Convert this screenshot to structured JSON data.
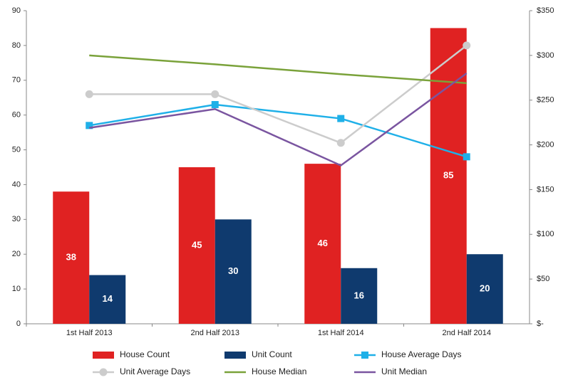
{
  "chart_data": {
    "type": "bar",
    "categories": [
      "1st Half 2013",
      "2nd Half 2013",
      "1st Half 2014",
      "2nd Half 2014"
    ],
    "series": [
      {
        "name": "House Count",
        "kind": "bar",
        "color": "#e02222",
        "values": [
          38,
          45,
          46,
          85
        ]
      },
      {
        "name": "Unit Count",
        "kind": "bar",
        "color": "#0f3a6e",
        "values": [
          14,
          30,
          16,
          20
        ]
      },
      {
        "name": "House Average Days",
        "kind": "line",
        "marker": "square",
        "color": "#1fb0e8",
        "values": [
          57,
          63,
          59,
          48
        ]
      },
      {
        "name": "Unit Average Days",
        "kind": "line",
        "marker": "circle",
        "color": "#cccccc",
        "values": [
          66,
          66,
          52,
          80
        ]
      },
      {
        "name": "House Median",
        "kind": "line",
        "axis": "y2",
        "color": "#7aa23a",
        "values": [
          300,
          290,
          279,
          269
        ]
      },
      {
        "name": "Unit Median",
        "kind": "line",
        "axis": "y2",
        "color": "#7a55a0",
        "values": [
          219,
          240,
          177,
          280
        ]
      }
    ],
    "ylim": [
      0,
      90
    ],
    "yticks": [
      0,
      10,
      20,
      30,
      40,
      50,
      60,
      70,
      80,
      90
    ],
    "y2lim": [
      0,
      350
    ],
    "y2ticks": [
      {
        "value": 0,
        "label": "$-"
      },
      {
        "value": 50,
        "label": "$50"
      },
      {
        "value": 100,
        "label": "$100"
      },
      {
        "value": 150,
        "label": "$150"
      },
      {
        "value": 200,
        "label": "$200"
      },
      {
        "value": 250,
        "label": "$250"
      },
      {
        "value": 300,
        "label": "$300"
      },
      {
        "value": 350,
        "label": "$350"
      }
    ],
    "grid": false
  }
}
